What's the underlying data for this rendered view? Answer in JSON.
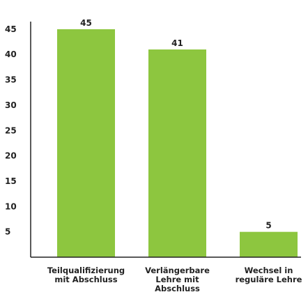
{
  "chart_data": {
    "type": "bar",
    "categories": [
      [
        "Teilqualifizierung",
        "mit Abschluss"
      ],
      [
        "Verlängerbare",
        "Lehre mit",
        "Abschluss"
      ],
      [
        "Wechsel in",
        "reguläre Lehre"
      ]
    ],
    "values": [
      45,
      41,
      5
    ],
    "data_labels": [
      "45",
      "41",
      "5"
    ],
    "yticks": [
      5,
      10,
      15,
      20,
      25,
      30,
      35,
      40,
      45
    ],
    "ylim": [
      0,
      46.5
    ],
    "grid": false,
    "legend": "none",
    "colors": {
      "bar": "#8dc63f",
      "axis": "#222222",
      "text": "#222222"
    }
  }
}
